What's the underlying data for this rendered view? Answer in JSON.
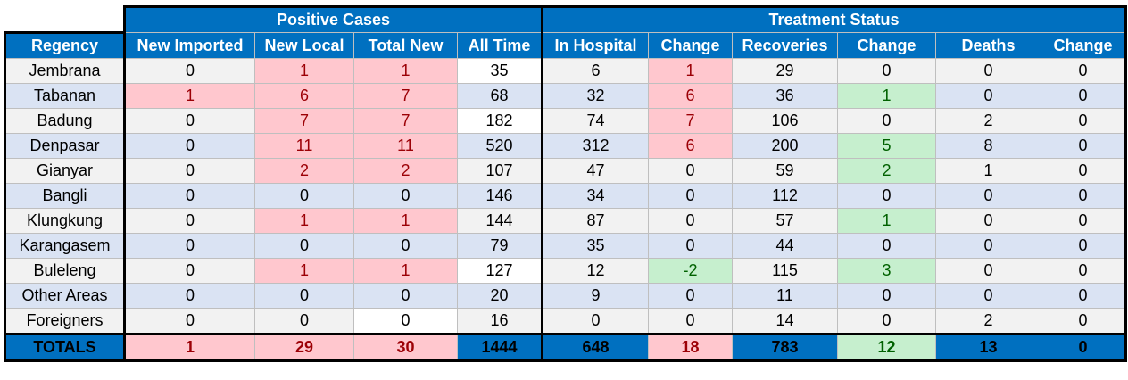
{
  "groups": {
    "positive_cases": "Positive Cases",
    "treatment_status": "Treatment Status"
  },
  "columns": [
    "Regency",
    "New Imported",
    "New Local",
    "Total New",
    "All Time",
    "In Hospital",
    "Change",
    "Recoveries",
    "Change",
    "Deaths",
    "Change"
  ],
  "rows": [
    [
      "Jembrana",
      "0",
      "1",
      "1",
      "35",
      "6",
      "1",
      "29",
      "0",
      "0",
      "0"
    ],
    [
      "Tabanan",
      "1",
      "6",
      "7",
      "68",
      "32",
      "6",
      "36",
      "1",
      "0",
      "0"
    ],
    [
      "Badung",
      "0",
      "7",
      "7",
      "182",
      "74",
      "7",
      "106",
      "0",
      "2",
      "0"
    ],
    [
      "Denpasar",
      "0",
      "11",
      "11",
      "520",
      "312",
      "6",
      "200",
      "5",
      "8",
      "0"
    ],
    [
      "Gianyar",
      "0",
      "2",
      "2",
      "107",
      "47",
      "0",
      "59",
      "2",
      "1",
      "0"
    ],
    [
      "Bangli",
      "0",
      "0",
      "0",
      "146",
      "34",
      "0",
      "112",
      "0",
      "0",
      "0"
    ],
    [
      "Klungkung",
      "0",
      "1",
      "1",
      "144",
      "87",
      "0",
      "57",
      "1",
      "0",
      "0"
    ],
    [
      "Karangasem",
      "0",
      "0",
      "0",
      "79",
      "35",
      "0",
      "44",
      "0",
      "0",
      "0"
    ],
    [
      "Buleleng",
      "0",
      "1",
      "1",
      "127",
      "12",
      "-2",
      "115",
      "3",
      "0",
      "0"
    ],
    [
      "Other Areas",
      "0",
      "0",
      "0",
      "20",
      "9",
      "0",
      "11",
      "0",
      "0",
      "0"
    ],
    [
      "Foreigners",
      "0",
      "0",
      "0",
      "16",
      "0",
      "0",
      "14",
      "0",
      "2",
      "0"
    ]
  ],
  "totals": [
    "TOTALS",
    "1",
    "29",
    "30",
    "1444",
    "648",
    "18",
    "783",
    "12",
    "13",
    "0"
  ],
  "colors": {
    "header_blue": "#0070c0",
    "row_gray": "#f2f2f2",
    "row_blue": "#dae3f3",
    "increase_fill": "#ffc7ce",
    "increase_text": "#9c0006",
    "decrease_fill": "#c6efce",
    "decrease_text": "#006100"
  }
}
